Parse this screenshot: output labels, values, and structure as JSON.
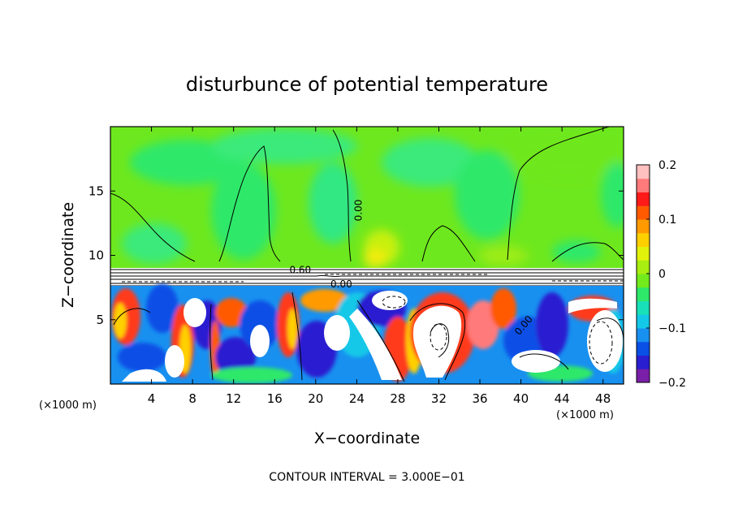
{
  "chart_data": {
    "type": "heatmap",
    "title": "disturbunce of potential temperature",
    "xlabel": "X−coordinate",
    "ylabel": "Z−coordinate",
    "x_unit": "(×1000 m)",
    "x_unit_right": "(×1000 m)",
    "footer": "CONTOUR INTERVAL = 3.000E−01",
    "xlim": [
      0,
      50
    ],
    "ylim": [
      0,
      20
    ],
    "xticks": [
      4,
      8,
      12,
      16,
      20,
      24,
      28,
      32,
      36,
      40,
      44,
      48
    ],
    "yticks": [
      5,
      10,
      15
    ],
    "colorbar": {
      "range": [
        -0.2,
        0.2
      ],
      "ticks": [
        0.2,
        0.1,
        0,
        -0.1,
        -0.2
      ],
      "tick_labels": [
        "0.2",
        "0.1",
        "0",
        "−0.1",
        "−0.2"
      ],
      "colors": [
        "#7a1fa8",
        "#2a1fd0",
        "#0a4fe6",
        "#1890f0",
        "#14c8e8",
        "#18e0b8",
        "#2ee86a",
        "#72ea1c",
        "#a8ee10",
        "#e2f20a",
        "#ffd000",
        "#ff9a00",
        "#ff5a00",
        "#ff1a1a",
        "#ff7a7a",
        "#ffc0c0"
      ]
    },
    "contour_labels": [
      {
        "text": "0.00",
        "x": 24.5,
        "z": 13.5
      },
      {
        "text": "0.60",
        "x": 18.5,
        "z": 8.6
      },
      {
        "text": "0.00",
        "x": 22.5,
        "z": 7.5
      },
      {
        "text": "0.00",
        "x": 40.5,
        "z": 4.4
      }
    ],
    "field": {
      "upper_layer": {
        "z_range": [
          9.0,
          20
        ],
        "background_level": 0.0
      },
      "inversion_band": {
        "z_range": [
          7.5,
          9.0
        ]
      },
      "lower_layer": {
        "z_range": [
          0,
          7.5
        ],
        "range": [
          -0.2,
          0.2
        ]
      }
    }
  }
}
